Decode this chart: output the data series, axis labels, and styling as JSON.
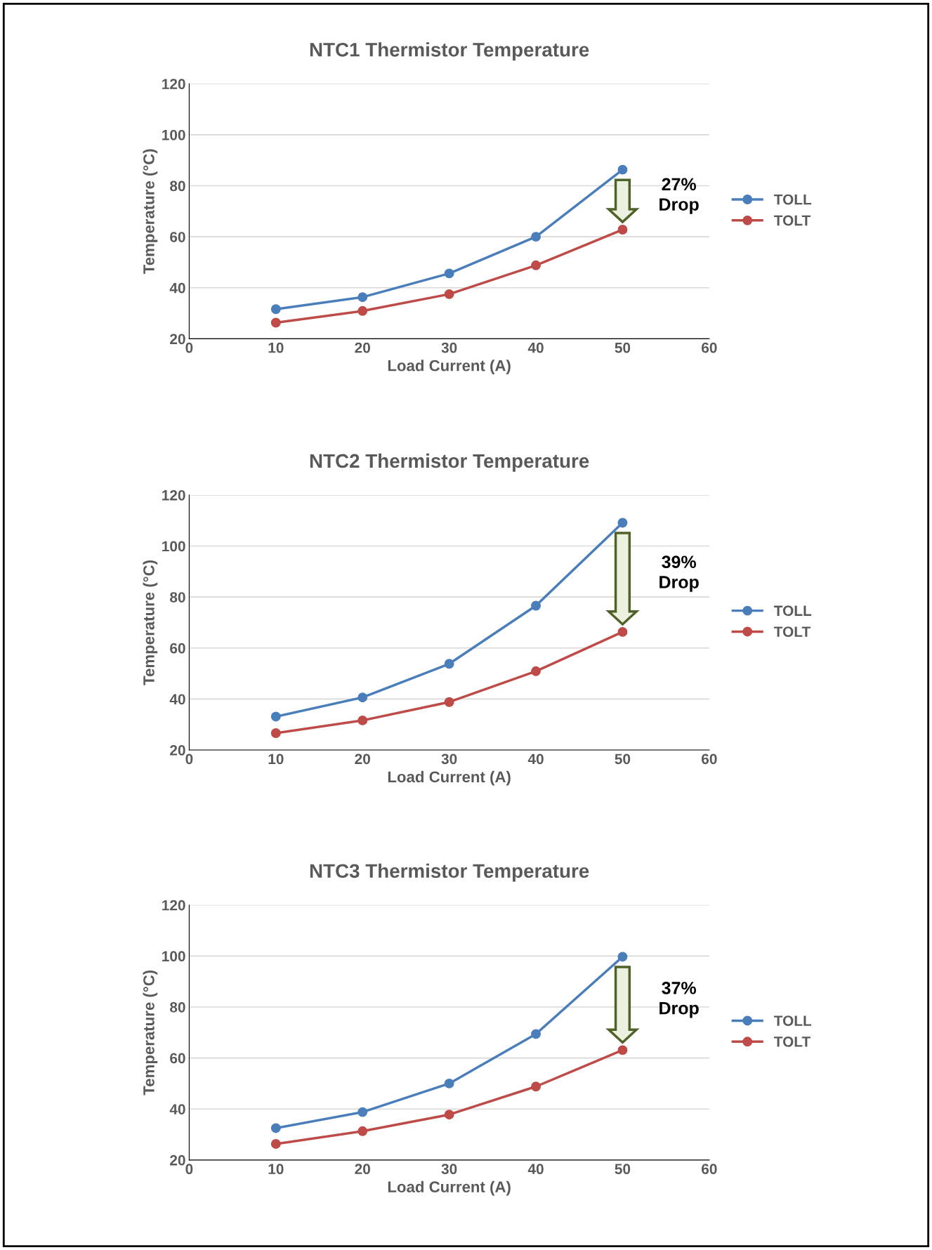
{
  "chart_data": [
    {
      "type": "line",
      "title": "NTC1 Thermistor Temperature",
      "xlabel": "Load Current (A)",
      "ylabel": "Temperature (°C)",
      "x": [
        10,
        20,
        30,
        40,
        50
      ],
      "series": [
        {
          "name": "TOLL",
          "color": "#4a7ebb",
          "values": [
            31.6,
            36.3,
            45.6,
            60,
            86.3
          ]
        },
        {
          "name": "TOLT",
          "color": "#be4b48",
          "values": [
            26.3,
            30.9,
            37.5,
            48.8,
            62.8
          ]
        }
      ],
      "xlim": [
        0,
        60
      ],
      "xticks": [
        0,
        10,
        20,
        30,
        40,
        50,
        60
      ],
      "ylim": [
        20,
        120
      ],
      "yticks": [
        20,
        40,
        60,
        80,
        100,
        120
      ],
      "grid": "y",
      "legend": "right",
      "marker": "circle",
      "line_style": "solid",
      "annotations": [
        "27%\nDrop"
      ]
    },
    {
      "type": "line",
      "title": "NTC2 Thermistor Temperature",
      "xlabel": "Load Current (A)",
      "ylabel": "Temperature (°C)",
      "x": [
        10,
        20,
        30,
        40,
        50
      ],
      "series": [
        {
          "name": "TOLL",
          "color": "#4a7ebb",
          "values": [
            33.1,
            40.6,
            53.8,
            76.6,
            109.1
          ]
        },
        {
          "name": "TOLT",
          "color": "#be4b48",
          "values": [
            26.6,
            31.6,
            38.8,
            50.9,
            66.3
          ]
        }
      ],
      "xlim": [
        0,
        60
      ],
      "xticks": [
        0,
        10,
        20,
        30,
        40,
        50,
        60
      ],
      "ylim": [
        20,
        120
      ],
      "yticks": [
        20,
        40,
        60,
        80,
        100,
        120
      ],
      "grid": "y",
      "legend": "right",
      "marker": "circle",
      "line_style": "solid",
      "annotations": [
        "39%\nDrop"
      ]
    },
    {
      "type": "line",
      "title": "NTC3 Thermistor Temperature",
      "xlabel": "Load Current (A)",
      "ylabel": "Temperature (°C)",
      "x": [
        10,
        20,
        30,
        40,
        50
      ],
      "series": [
        {
          "name": "TOLL",
          "color": "#4a7ebb",
          "values": [
            32.5,
            38.8,
            50,
            69.4,
            99.7
          ]
        },
        {
          "name": "TOLT",
          "color": "#be4b48",
          "values": [
            26.3,
            31.3,
            37.8,
            48.8,
            63.1
          ]
        }
      ],
      "xlim": [
        0,
        60
      ],
      "xticks": [
        0,
        10,
        20,
        30,
        40,
        50,
        60
      ],
      "ylim": [
        20,
        120
      ],
      "yticks": [
        20,
        40,
        60,
        80,
        100,
        120
      ],
      "grid": "y",
      "legend": "right",
      "marker": "circle",
      "line_style": "solid",
      "annotations": [
        "37%\nDrop"
      ]
    }
  ]
}
